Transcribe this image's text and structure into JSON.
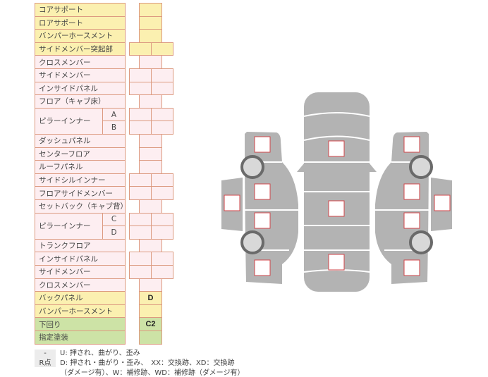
{
  "table": {
    "rows": [
      {
        "label": "コアサポート",
        "cells": 1,
        "color": "yellow",
        "value": ""
      },
      {
        "label": "ロアサポート",
        "cells": 1,
        "color": "yellow",
        "value": ""
      },
      {
        "label": "バンパーホースメント",
        "cells": 1,
        "color": "yellow",
        "value": ""
      },
      {
        "label": "サイドメンバー突起部",
        "cells": 2,
        "color": "yellow",
        "value": ""
      },
      {
        "label": "クロスメンバー",
        "cells": 1,
        "color": "pink",
        "value": ""
      },
      {
        "label": "サイドメンバー",
        "cells": 2,
        "color": "pink",
        "value": ""
      },
      {
        "label": "インサイドパネル",
        "cells": 2,
        "color": "pink",
        "value": ""
      },
      {
        "label": "フロア（キャブ床）",
        "cells": 1,
        "color": "pink",
        "value": ""
      },
      {
        "label": "ピラーインナー",
        "sub": "A",
        "cells": 2,
        "color": "pink",
        "value": ""
      },
      {
        "label": "",
        "sub": "B",
        "cells": 2,
        "color": "pink",
        "value": ""
      },
      {
        "label": "ダッシュパネル",
        "cells": 1,
        "color": "pink",
        "value": ""
      },
      {
        "label": "センターフロア",
        "cells": 1,
        "color": "pink",
        "value": ""
      },
      {
        "label": "ルーフパネル",
        "cells": 1,
        "color": "pink",
        "value": ""
      },
      {
        "label": "サイドシルインナー",
        "cells": 2,
        "color": "pink",
        "value": ""
      },
      {
        "label": "フロアサイドメンバー",
        "cells": 2,
        "color": "pink",
        "value": ""
      },
      {
        "label": "セットバック（キャブ背）",
        "cells": 1,
        "color": "pink",
        "value": ""
      },
      {
        "label": "ピラーインナー",
        "sub": "C",
        "cells": 2,
        "color": "pink",
        "value": ""
      },
      {
        "label": "",
        "sub": "D",
        "cells": 2,
        "color": "pink",
        "value": ""
      },
      {
        "label": "トランクフロア",
        "cells": 1,
        "color": "pink",
        "value": ""
      },
      {
        "label": "インサイドパネル",
        "cells": 2,
        "color": "pink",
        "value": ""
      },
      {
        "label": "サイドメンバー",
        "cells": 2,
        "color": "pink",
        "value": ""
      },
      {
        "label": "クロスメンバー",
        "cells": 1,
        "color": "pink",
        "value": ""
      },
      {
        "label": "バックパネル",
        "cells": 1,
        "color": "yellow",
        "value": "D"
      },
      {
        "label": "バンパーホースメント",
        "cells": 1,
        "color": "yellow",
        "value": ""
      },
      {
        "label": "下回り",
        "cells": 1,
        "color": "green",
        "value": "C2"
      },
      {
        "label": "指定塗装",
        "cells": 1,
        "color": "green",
        "value": ""
      }
    ]
  },
  "legend": [
    {
      "key": "-",
      "text": "U: 押され、曲がり、歪み"
    },
    {
      "key": "R点",
      "text": "D: 押され・曲がり・歪み、　XX：交換跡、XD：交換跡"
    },
    {
      "key": "",
      "text": "（ダメージ有）、W：補修跡、WD：補修跡（ダメージ有）"
    }
  ],
  "colors": {
    "body": "#b3b3b3",
    "marker": "#d0454a",
    "border": "#dc9a80"
  }
}
